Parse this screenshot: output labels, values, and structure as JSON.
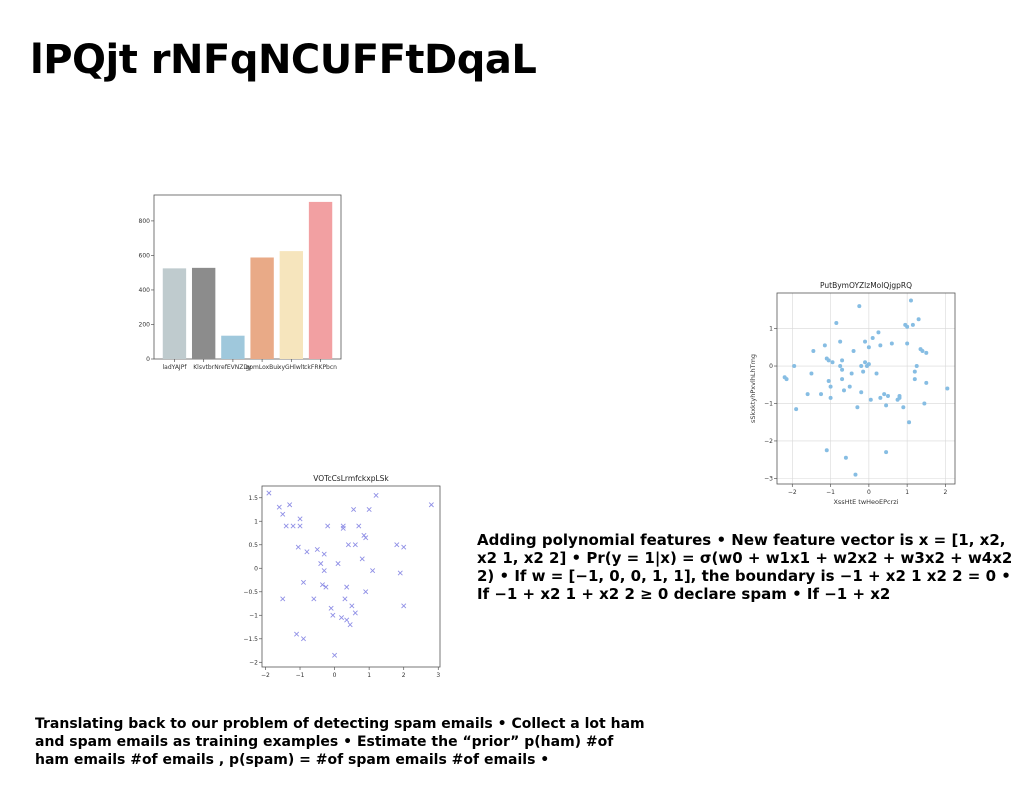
{
  "slide": {
    "title": "lPQjt rNFqNCUFFtDqaL",
    "right_text": "Adding polynomial features • New feature vector is x = [1, x2, x2 1, x2 2] • Pr(y = 1|x) = σ(w0 + w1x1 + w2x2 + w3x2 + w4x2 2) • If w = [−1, 0, 0, 1, 1], the boundary is −1 + x2 1 x2 2 = 0 • If −1 + x2 1 + x2 2 ≥ 0 declare spam • If −1 + x2",
    "bottom_text": "Translating back to our problem of detecting spam emails • Collect a lot ham and spam emails as training examples • Estimate the “prior” p(ham) #of ham emails #of emails , p(spam) = #of spam emails #of emails •"
  },
  "chart_data": [
    {
      "type": "bar",
      "title": "",
      "xlabel": "",
      "ylabel": "",
      "categories": [
        "ladYAJPf",
        "Klsvtbr",
        "NrefEVNZDy",
        "gpmLoxBui",
        "xyGHlwlt",
        "ckFRKPbcn"
      ],
      "values": [
        525,
        528,
        135,
        588,
        625,
        910
      ],
      "colors": [
        "#bfcbce",
        "#8c8c8c",
        "#9fc8dc",
        "#e9aa87",
        "#f6e5bd",
        "#f2a0a2"
      ],
      "ylim": [
        0,
        950
      ],
      "yticks": [
        0,
        200,
        400,
        600,
        800
      ],
      "grid": false
    },
    {
      "type": "scatter",
      "title": "PutBymOYZlzMolQjgpRQ",
      "xlabel": "XssHtE twHeoEPcrzi",
      "ylabel": "sSkxktyhPxvlhLhTmg",
      "marker": "circle",
      "color": "#86bde3",
      "xlim": [
        -2.4,
        2.25
      ],
      "ylim": [
        -3.15,
        1.95
      ],
      "xticks": [
        -2,
        -1,
        0,
        1,
        2
      ],
      "yticks": [
        -3,
        -2,
        -1,
        0,
        1
      ],
      "grid": true,
      "x": [
        -2.2,
        -2.15,
        -1.95,
        -1.9,
        -1.6,
        -1.5,
        -1.45,
        -1.25,
        -1.15,
        -1.1,
        -1.05,
        -1.05,
        -1.0,
        -1.0,
        -0.95,
        -0.85,
        -0.75,
        -0.7,
        -0.7,
        -0.65,
        -0.6,
        -0.5,
        -0.45,
        -0.4,
        -0.35,
        -0.3,
        -0.25,
        -0.2,
        -0.15,
        -0.1,
        -0.1,
        -0.05,
        0.0,
        0.0,
        0.05,
        0.1,
        0.2,
        0.25,
        0.3,
        0.3,
        0.4,
        0.45,
        0.5,
        0.6,
        0.75,
        0.8,
        0.9,
        0.95,
        1.0,
        1.0,
        1.05,
        1.1,
        1.15,
        1.2,
        1.2,
        1.25,
        1.3,
        1.35,
        1.4,
        1.45,
        1.5,
        2.05,
        0.8,
        -0.2,
        -0.75,
        -0.7,
        -1.1,
        0.45,
        1.5
      ],
      "y": [
        -0.3,
        -0.35,
        0.0,
        -1.15,
        -0.75,
        -0.2,
        0.4,
        -0.75,
        0.55,
        -2.25,
        -0.4,
        0.15,
        -0.55,
        -0.85,
        0.1,
        1.15,
        0.65,
        0.15,
        -0.35,
        -0.65,
        -2.45,
        -0.55,
        -0.2,
        0.4,
        -2.9,
        -1.1,
        1.6,
        0.0,
        -0.15,
        0.1,
        0.65,
        0.0,
        0.05,
        0.5,
        -0.9,
        0.75,
        -0.2,
        0.9,
        0.55,
        -0.85,
        -0.75,
        -2.3,
        -0.8,
        0.6,
        -0.9,
        -0.85,
        -1.1,
        1.1,
        0.6,
        1.05,
        -1.5,
        1.75,
        1.1,
        -0.35,
        -0.15,
        0.0,
        1.25,
        0.45,
        0.4,
        -1.0,
        0.35,
        -0.6,
        -0.8,
        -0.7,
        0.0,
        -0.1,
        0.2,
        -1.05,
        -0.45
      ]
    },
    {
      "type": "scatter",
      "title": "VOTcCsLrmfckxpLSk",
      "xlabel": "",
      "ylabel": "",
      "marker": "x",
      "color": "#8f8fe6",
      "xlim": [
        -2.1,
        3.05
      ],
      "ylim": [
        -2.1,
        1.75
      ],
      "xticks": [
        -2,
        -1,
        0,
        1,
        2,
        3
      ],
      "yticks": [
        -2.0,
        -1.5,
        -1.0,
        -0.5,
        0.0,
        0.5,
        1.0,
        1.5
      ],
      "grid": false,
      "x": [
        -1.9,
        -1.6,
        -1.5,
        -1.4,
        -1.3,
        -1.2,
        -1.1,
        -1.05,
        -1.0,
        -0.9,
        -0.8,
        -0.6,
        -0.5,
        -0.4,
        -0.35,
        -0.3,
        -0.25,
        -0.2,
        -0.1,
        -0.05,
        0.0,
        0.1,
        0.2,
        0.25,
        0.3,
        0.35,
        0.4,
        0.45,
        0.5,
        0.55,
        0.6,
        0.7,
        0.8,
        0.85,
        0.9,
        1.0,
        1.1,
        1.2,
        1.8,
        1.9,
        2.0,
        2.0,
        2.8,
        -1.5,
        -0.9,
        -1.0,
        -0.3,
        0.6,
        0.35,
        0.25,
        0.9
      ],
      "y": [
        1.6,
        1.3,
        1.15,
        0.9,
        1.35,
        0.9,
        -1.4,
        0.45,
        1.05,
        -1.5,
        0.35,
        -0.65,
        0.4,
        0.1,
        -0.35,
        -0.05,
        -0.4,
        0.9,
        -0.85,
        -1.0,
        -1.85,
        0.1,
        -1.05,
        0.9,
        -0.65,
        -1.1,
        0.5,
        -1.2,
        -0.8,
        1.25,
        -0.95,
        0.9,
        0.2,
        0.7,
        -0.5,
        1.25,
        -0.05,
        1.55,
        0.5,
        -0.1,
        0.45,
        -0.8,
        1.35,
        -0.65,
        -0.3,
        0.9,
        0.3,
        0.5,
        -0.4,
        0.85,
        0.65
      ]
    }
  ]
}
